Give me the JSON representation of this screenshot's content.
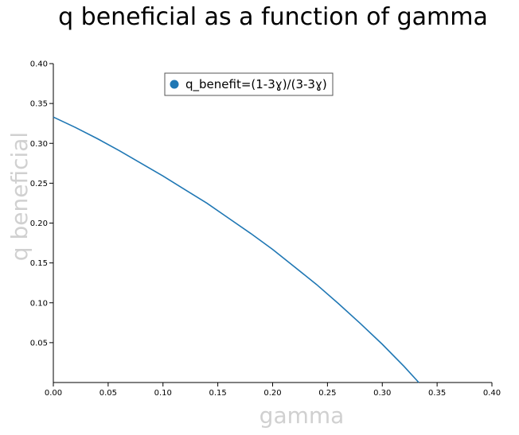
{
  "chart_data": {
    "type": "line",
    "title": "q beneficial as a function of gamma",
    "xlabel": "gamma",
    "ylabel": "q beneficial",
    "xlim": [
      0,
      0.4
    ],
    "ylim": [
      0,
      0.4
    ],
    "x_ticks": [
      "0.00",
      "0.05",
      "0.10",
      "0.15",
      "0.20",
      "0.25",
      "0.30",
      "0.35",
      "0.40"
    ],
    "y_ticks": [
      "0.05",
      "0.10",
      "0.15",
      "0.20",
      "0.25",
      "0.30",
      "0.35",
      "0.40"
    ],
    "grid": false,
    "legend_position": "top-center",
    "series": [
      {
        "name": "q_benefit=(1-3ɣ)/(3-3ɣ)",
        "color": "#1f77b4",
        "x": [
          0,
          0.02,
          0.04,
          0.06,
          0.08,
          0.1,
          0.12,
          0.14,
          0.16,
          0.18,
          0.2,
          0.22,
          0.24,
          0.26,
          0.28,
          0.3,
          0.32,
          0.3333
        ],
        "y": [
          0.333,
          0.32,
          0.306,
          0.291,
          0.275,
          0.259,
          0.242,
          0.225,
          0.206,
          0.187,
          0.167,
          0.145,
          0.123,
          0.099,
          0.074,
          0.048,
          0.02,
          0
        ]
      }
    ]
  }
}
